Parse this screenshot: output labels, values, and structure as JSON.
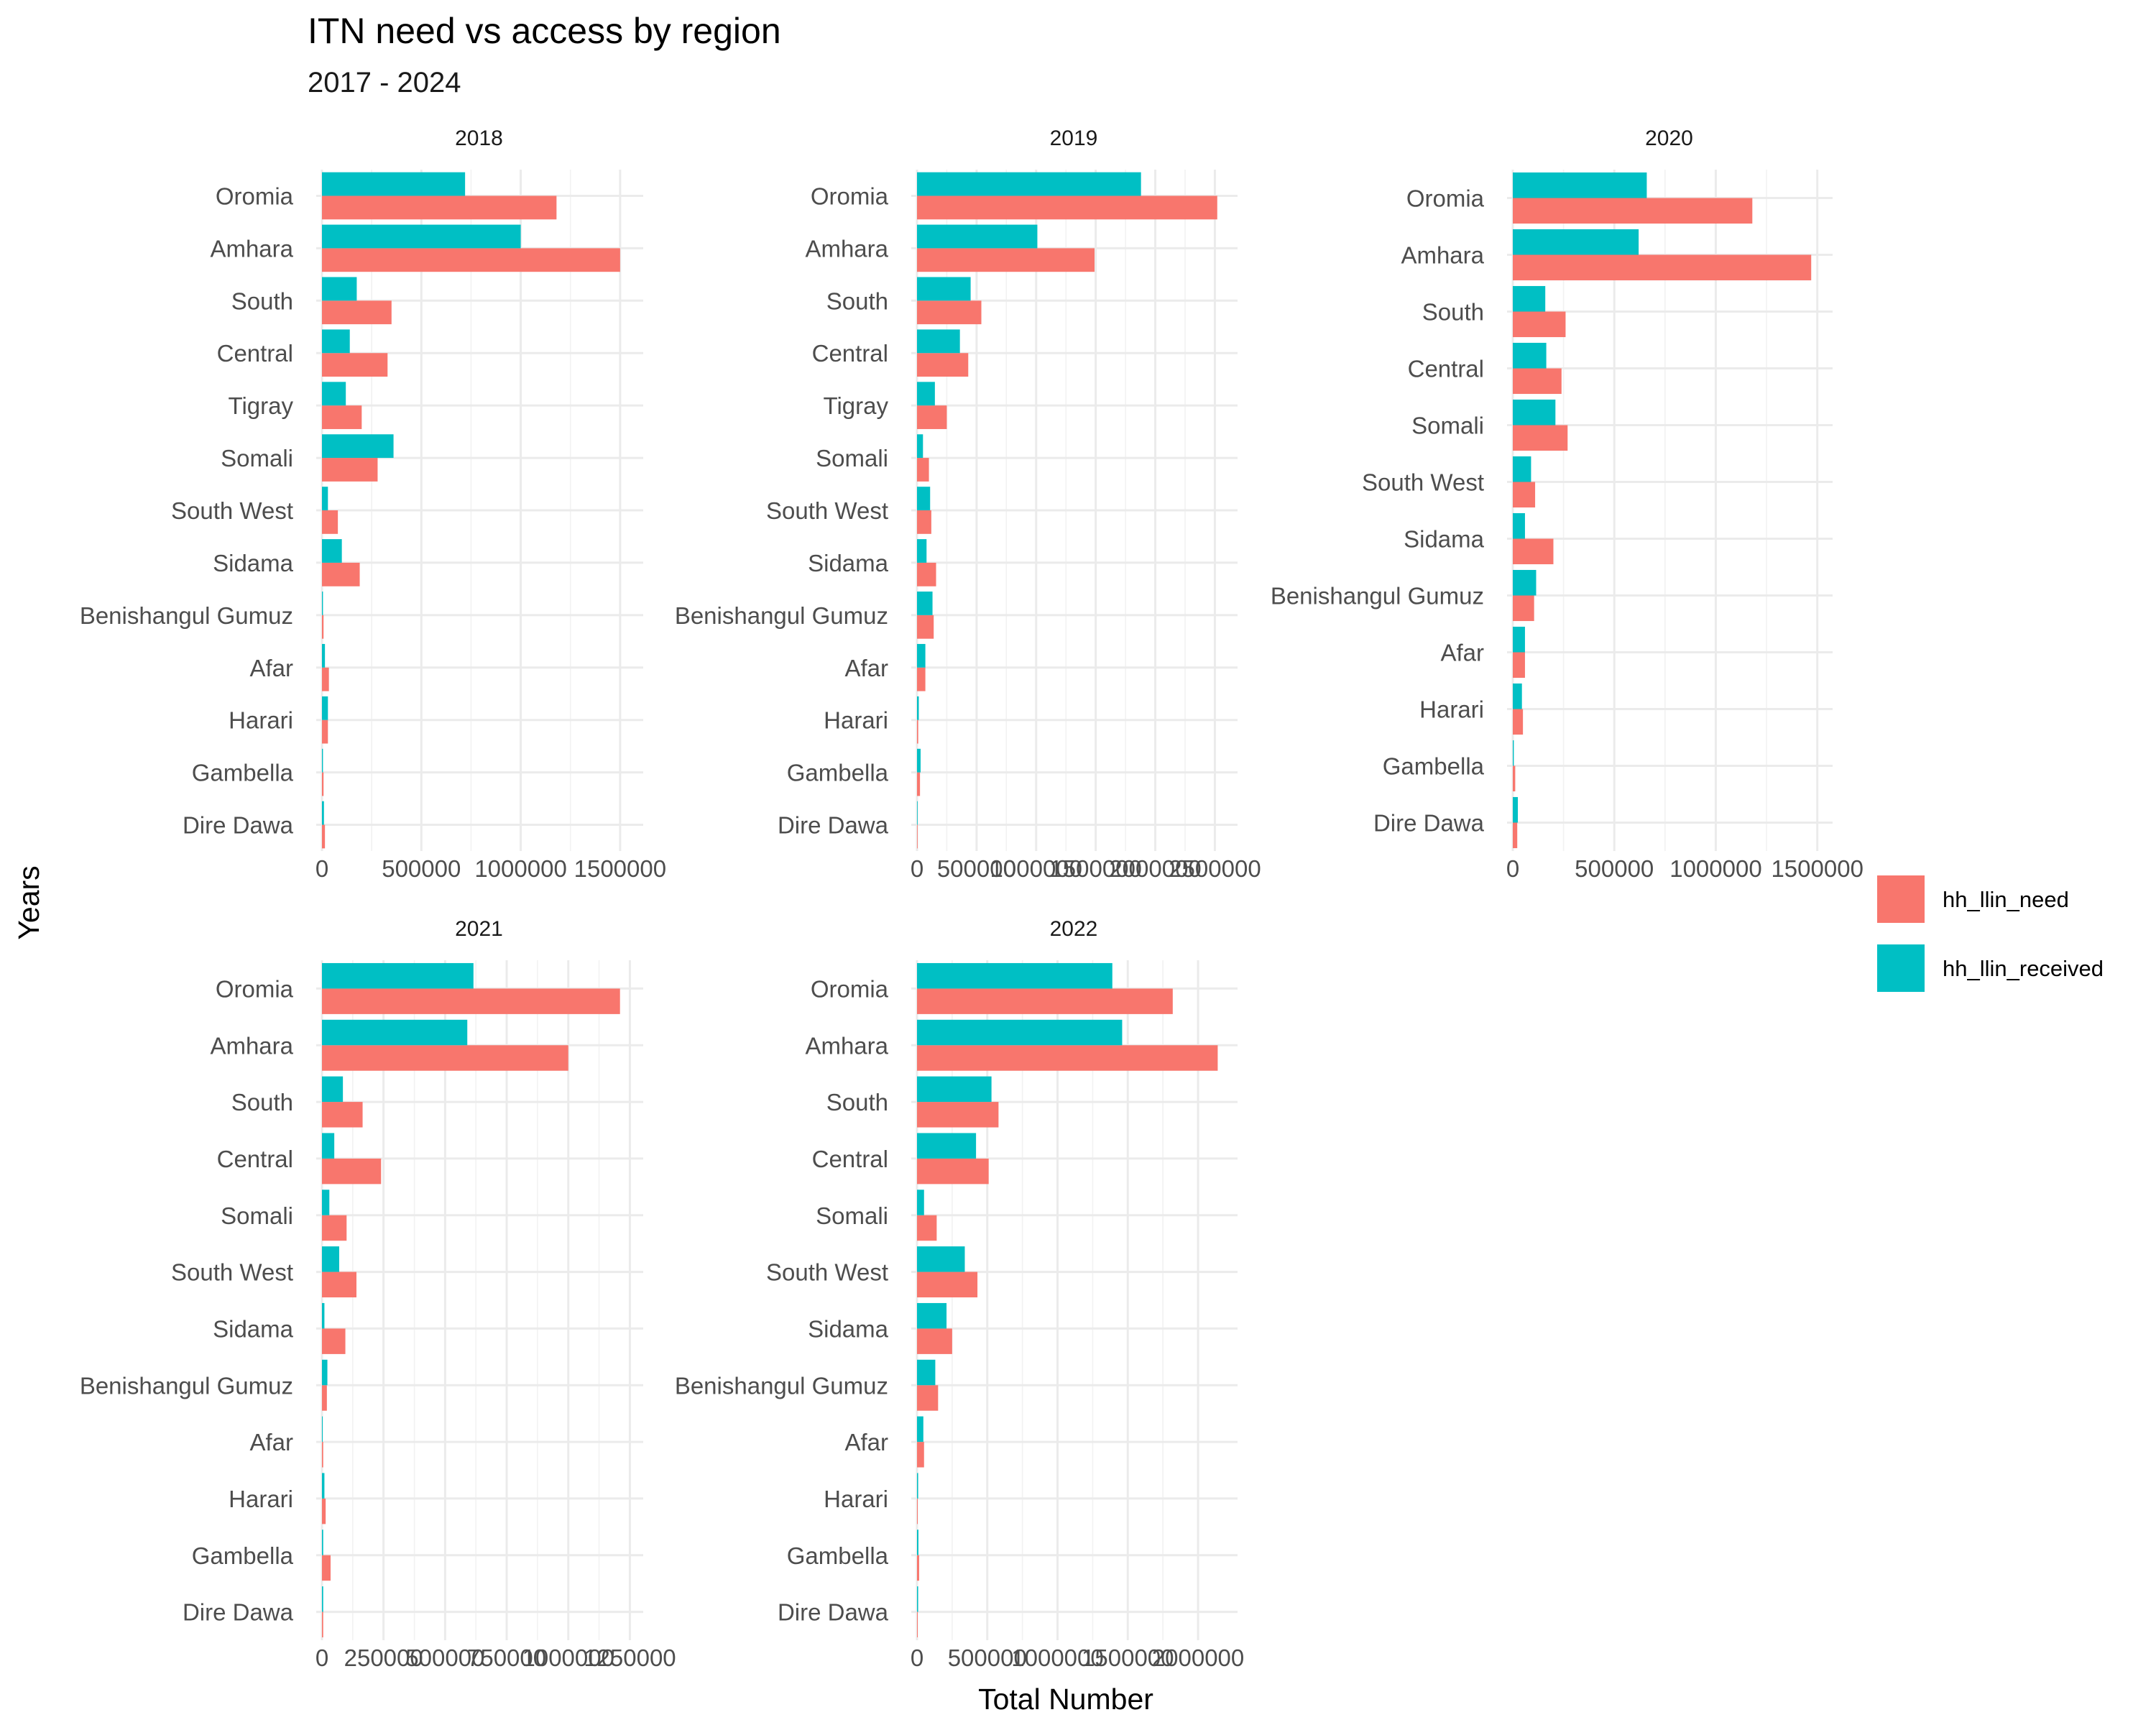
{
  "title": "ITN need vs access by region",
  "subtitle": "2017 - 2024",
  "xlabel": "Total Number",
  "ylabel": "Years",
  "legend": {
    "items": [
      {
        "key": "need",
        "label": "hh_llin_need",
        "color": "#F8766D"
      },
      {
        "key": "received",
        "label": "hh_llin_received",
        "color": "#00BFC4"
      }
    ]
  },
  "chart_data": {
    "type": "bar",
    "orientation": "horizontal",
    "title": "ITN need vs access by region",
    "subtitle": "2017 - 2024",
    "xlabel": "Total Number",
    "ylabel": "Years",
    "legend_position": "right",
    "grid": true,
    "panels": [
      {
        "facet": "2018",
        "xlim": [
          0,
          1580000
        ],
        "ticks": [
          "0",
          "500000",
          "1000000",
          "1500000"
        ],
        "tick_values": [
          0,
          500000,
          1000000,
          1500000
        ],
        "categories": [
          "Oromia",
          "Amhara",
          "South",
          "Central",
          "Tigray",
          "Somali",
          "South West",
          "Sidama",
          "Benishangul Gumuz",
          "Afar",
          "Harari",
          "Gambella",
          "Dire Dawa"
        ],
        "series": [
          {
            "name": "hh_llin_need",
            "values": [
              1180000,
              1500000,
              350000,
              330000,
              200000,
              280000,
              80000,
              190000,
              8000,
              35000,
              30000,
              8000,
              15000
            ]
          },
          {
            "name": "hh_llin_received",
            "values": [
              720000,
              1000000,
              175000,
              140000,
              120000,
              360000,
              30000,
              100000,
              5000,
              15000,
              30000,
              5000,
              10000
            ]
          }
        ]
      },
      {
        "facet": "2019",
        "xlim": [
          0,
          2630000
        ],
        "ticks": [
          "0",
          "500000",
          "1000000",
          "1500000",
          "2000000",
          "2500000"
        ],
        "tick_values": [
          0,
          500000,
          1000000,
          1500000,
          2000000,
          2500000
        ],
        "categories": [
          "Oromia",
          "Amhara",
          "South",
          "Central",
          "Tigray",
          "Somali",
          "South West",
          "Sidama",
          "Benishangul Gumuz",
          "Afar",
          "Harari",
          "Gambella",
          "Dire Dawa"
        ],
        "series": [
          {
            "name": "hh_llin_need",
            "values": [
              2520000,
              1490000,
              540000,
              430000,
              250000,
              100000,
              120000,
              160000,
              140000,
              70000,
              10000,
              25000,
              5000
            ]
          },
          {
            "name": "hh_llin_received",
            "values": [
              1880000,
              1010000,
              450000,
              360000,
              150000,
              50000,
              110000,
              80000,
              130000,
              70000,
              15000,
              30000,
              5000
            ]
          }
        ]
      },
      {
        "facet": "2020",
        "xlim": [
          0,
          1540000
        ],
        "ticks": [
          "0",
          "500000",
          "1000000",
          "1500000"
        ],
        "tick_values": [
          0,
          500000,
          1000000,
          1500000
        ],
        "categories": [
          "Oromia",
          "Amhara",
          "South",
          "Central",
          "Somali",
          "South West",
          "Sidama",
          "Benishangul Gumuz",
          "Afar",
          "Harari",
          "Gambella",
          "Dire Dawa"
        ],
        "series": [
          {
            "name": "hh_llin_need",
            "values": [
              1180000,
              1470000,
              260000,
              240000,
              270000,
              110000,
              200000,
              105000,
              60000,
              50000,
              12000,
              22000
            ]
          },
          {
            "name": "hh_llin_received",
            "values": [
              660000,
              620000,
              160000,
              165000,
              210000,
              90000,
              60000,
              115000,
              60000,
              45000,
              5000,
              25000
            ]
          }
        ]
      },
      {
        "facet": "2021",
        "xlim": [
          0,
          1275000
        ],
        "ticks": [
          "0",
          "250000",
          "500000",
          "750000",
          "1000000",
          "1250000"
        ],
        "tick_values": [
          0,
          250000,
          500000,
          750000,
          1000000,
          1250000
        ],
        "categories": [
          "Oromia",
          "Amhara",
          "South",
          "Central",
          "Somali",
          "South West",
          "Sidama",
          "Benishangul Gumuz",
          "Afar",
          "Harari",
          "Gambella",
          "Dire Dawa"
        ],
        "series": [
          {
            "name": "hh_llin_need",
            "values": [
              1210000,
              1000000,
              165000,
              240000,
              100000,
              140000,
              95000,
              20000,
              5000,
              15000,
              35000,
              5000
            ]
          },
          {
            "name": "hh_llin_received",
            "values": [
              615000,
              590000,
              85000,
              50000,
              30000,
              70000,
              10000,
              22000,
              3000,
              10000,
              5000,
              5000
            ]
          }
        ]
      },
      {
        "facet": "2022",
        "xlim": [
          0,
          2230000
        ],
        "ticks": [
          "0",
          "500000",
          "1000000",
          "1500000",
          "2000000"
        ],
        "tick_values": [
          0,
          500000,
          1000000,
          1500000,
          2000000
        ],
        "categories": [
          "Oromia",
          "Amhara",
          "South",
          "Central",
          "Somali",
          "South West",
          "Sidama",
          "Benishangul Gumuz",
          "Afar",
          "Harari",
          "Gambella",
          "Dire Dawa"
        ],
        "series": [
          {
            "name": "hh_llin_need",
            "values": [
              1820000,
              2140000,
              580000,
              510000,
              140000,
              430000,
              250000,
              150000,
              50000,
              5000,
              15000,
              5000
            ]
          },
          {
            "name": "hh_llin_received",
            "values": [
              1390000,
              1460000,
              530000,
              420000,
              50000,
              340000,
              210000,
              130000,
              45000,
              8000,
              10000,
              8000
            ]
          }
        ]
      }
    ]
  }
}
